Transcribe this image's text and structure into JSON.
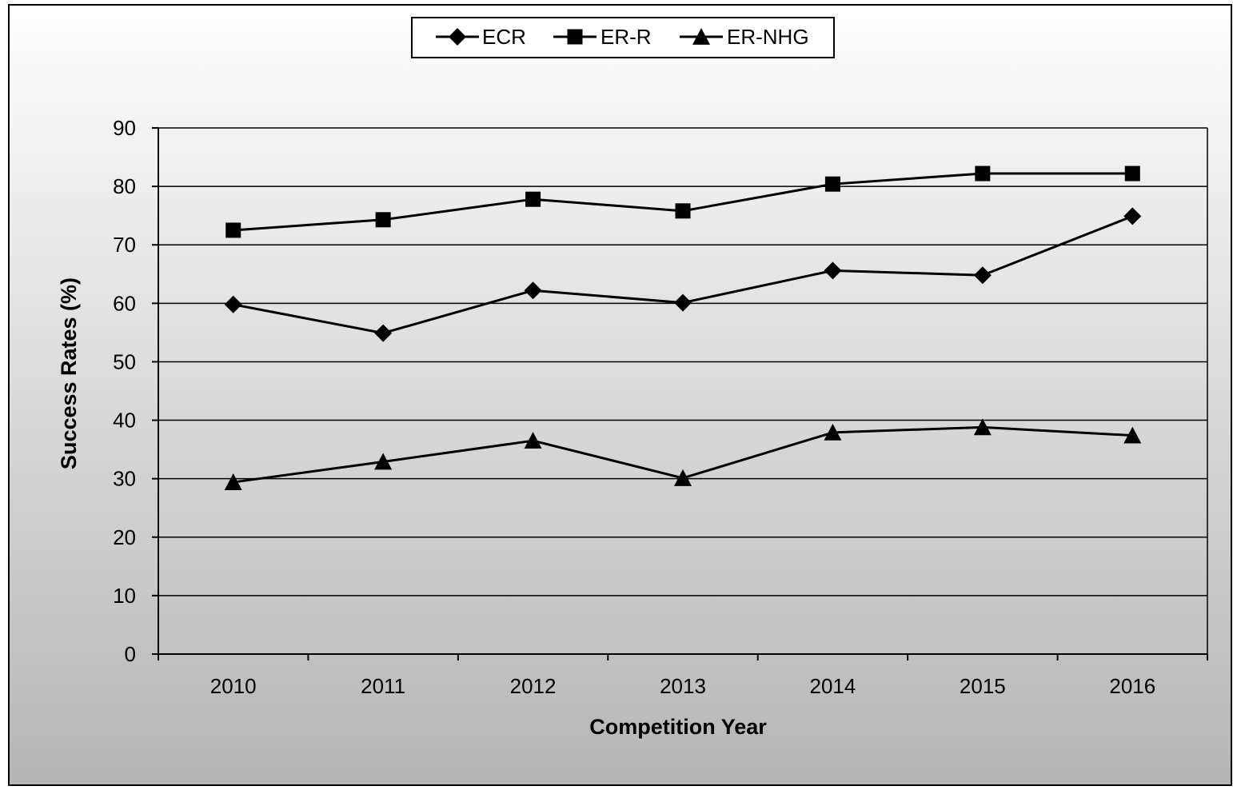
{
  "chart_data": {
    "type": "line",
    "title": "",
    "xlabel": "Competition Year",
    "ylabel": "Success Rates (%)",
    "categories": [
      "2010",
      "2011",
      "2012",
      "2013",
      "2014",
      "2015",
      "2016"
    ],
    "ylim": [
      0,
      90
    ],
    "yticks": [
      0,
      10,
      20,
      30,
      40,
      50,
      60,
      70,
      80,
      90
    ],
    "grid": "horizontal",
    "legend_position": "top-center",
    "series": [
      {
        "name": "ECR",
        "marker": "diamond",
        "values": [
          59.8,
          54.9,
          62.2,
          60.1,
          65.6,
          64.8,
          74.9
        ]
      },
      {
        "name": "ER-R",
        "marker": "square",
        "values": [
          72.5,
          74.3,
          77.8,
          75.8,
          80.4,
          82.2,
          82.2
        ]
      },
      {
        "name": "ER-NHG",
        "marker": "triangle",
        "values": [
          29.4,
          32.9,
          36.5,
          30.1,
          37.9,
          38.8,
          37.4
        ]
      }
    ],
    "colors": {
      "line": "#000000",
      "background_top": "#ffffff",
      "background_bottom": "#b5b5b5"
    }
  }
}
